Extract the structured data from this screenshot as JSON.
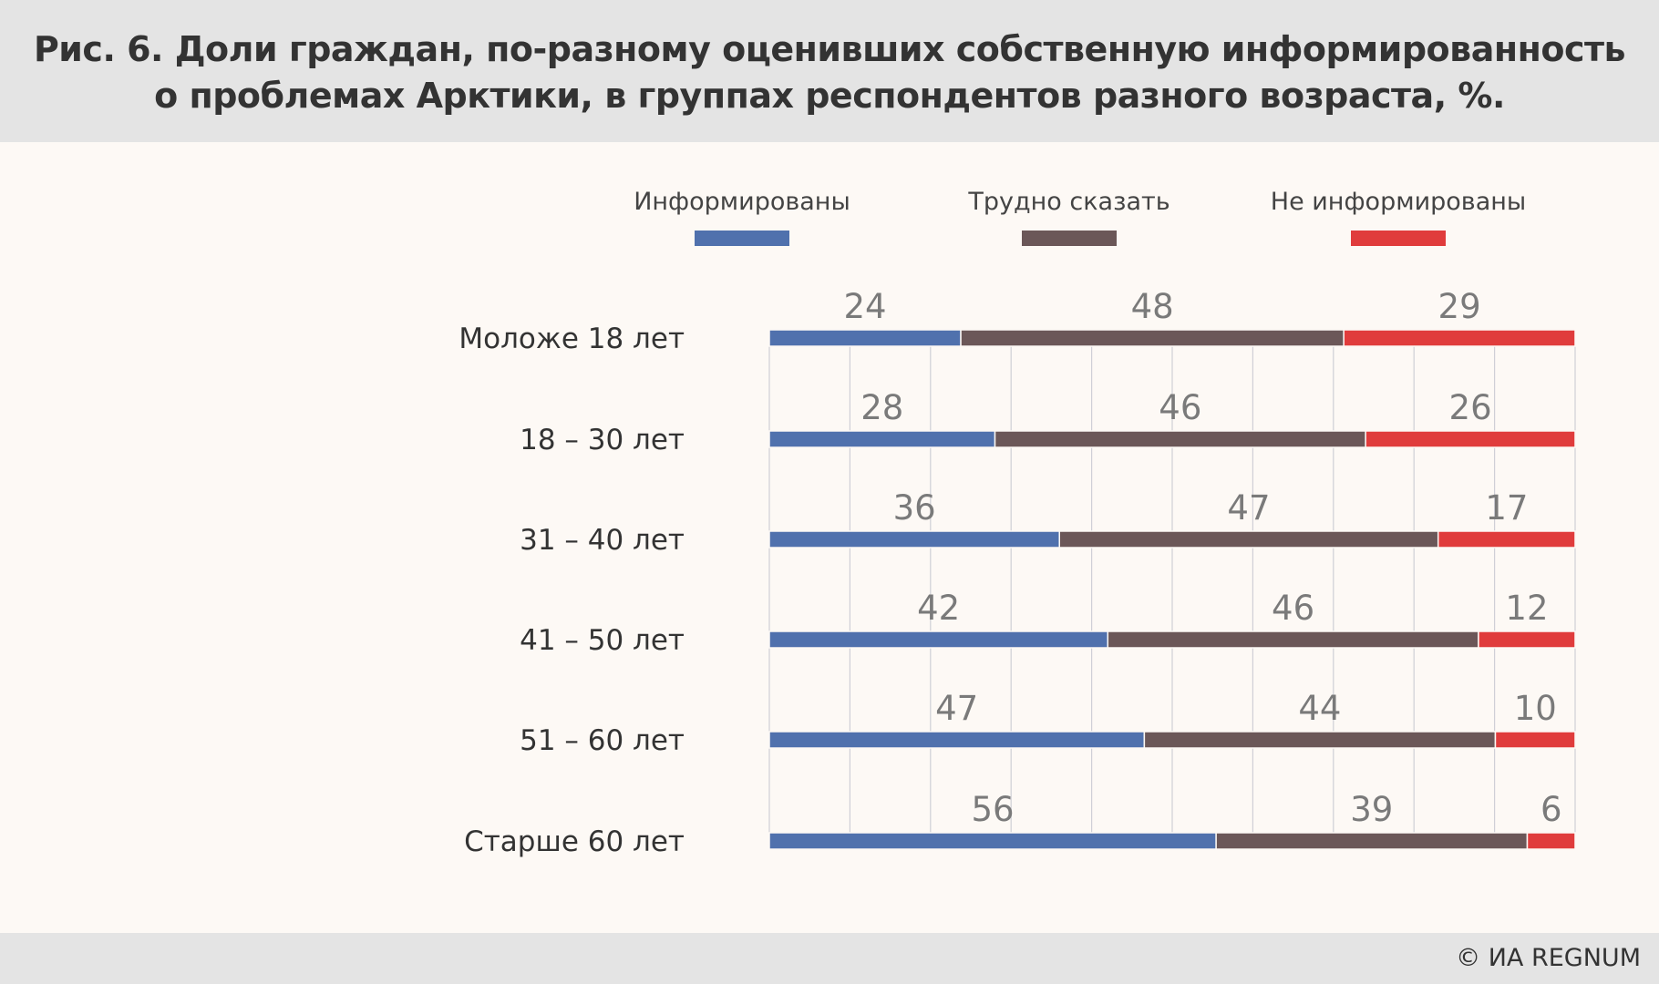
{
  "title": {
    "line1": "Рис. 6.  Доли граждан, по-разному оценивших собственную информированность",
    "line2": "о проблемах Арктики, в группах респондентов разного возраста, %."
  },
  "footer": {
    "copyright": "© ИА REGNUM"
  },
  "chart_data": {
    "type": "bar",
    "stacked": true,
    "orientation": "horizontal",
    "title": "Рис. 6.  Доли граждан, по-разному оценивших собственную информированность о проблемах Арктики, в группах респондентов разного возраста, %.",
    "legend_position": "top",
    "grid": true,
    "categories": [
      "Моложе 18 лет",
      "18 – 30 лет",
      "31 – 40 лет",
      "41 – 50 лет",
      "51 – 60 лет",
      "Старше 60 лет"
    ],
    "series": [
      {
        "name": "Информированы",
        "color": "#5071ad",
        "values": [
          24,
          28,
          36,
          42,
          47,
          56
        ]
      },
      {
        "name": "Трудно сказать",
        "color": "#6b5758",
        "values": [
          48,
          46,
          47,
          46,
          44,
          39
        ]
      },
      {
        "name": "Не информированы",
        "color": "#e03c3c",
        "values": [
          29,
          26,
          17,
          12,
          10,
          6
        ]
      }
    ]
  }
}
